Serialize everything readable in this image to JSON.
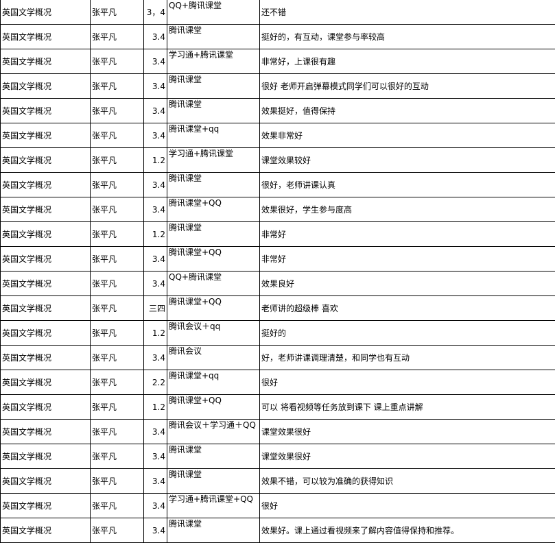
{
  "table": {
    "rows": [
      [
        "英国文学概况",
        "张平凡",
        "3，4",
        "QQ+腾讯课堂",
        "还不错"
      ],
      [
        "英国文学概况",
        "张平凡",
        "3.4",
        "腾讯课堂",
        "挺好的，有互动，课堂参与率较高"
      ],
      [
        "英国文学概况",
        "张平凡",
        "3.4",
        "学习通+腾讯课堂",
        "非常好，上课很有趣"
      ],
      [
        "英国文学概况",
        "张平凡",
        "3.4",
        "腾讯课堂",
        "很好 老师开启弹幕模式同学们可以很好的互动"
      ],
      [
        "英国文学概况",
        "张平凡",
        "3.4",
        "腾讯课堂",
        "效果挺好，值得保持"
      ],
      [
        "英国文学概况",
        "张平凡",
        "3.4",
        "腾讯课堂+qq",
        "效果非常好"
      ],
      [
        "英国文学概况",
        "张平凡",
        "1.2",
        "学习通+腾讯课堂",
        "课堂效果较好"
      ],
      [
        "英国文学概况",
        "张平凡",
        "3.4",
        "腾讯课堂",
        "很好，老师讲课认真"
      ],
      [
        "英国文学概况",
        "张平凡",
        "3.4",
        "腾讯课堂+QQ",
        "效果很好，学生参与度高"
      ],
      [
        "英国文学概况",
        "张平凡",
        "1.2",
        "腾讯课堂",
        "非常好"
      ],
      [
        "英国文学概况",
        "张平凡",
        "3.4",
        "腾讯课堂+QQ",
        "非常好"
      ],
      [
        "英国文学概况",
        "张平凡",
        "3.4",
        "QQ+腾讯课堂",
        "效果良好"
      ],
      [
        "英国文学概况",
        "张平凡",
        "三四",
        "腾讯课堂+QQ",
        "老师讲的超级棒 喜欢"
      ],
      [
        "英国文学概况",
        "张平凡",
        "1.2",
        "腾讯会议＋qq",
        "挺好的"
      ],
      [
        "英国文学概况",
        "张平凡",
        "3.4",
        "腾讯会议",
        "好，老师讲课调理清楚，和同学也有互动"
      ],
      [
        "英国文学概况",
        "张平凡",
        "2.2",
        "腾讯课堂+qq",
        "很好"
      ],
      [
        "英国文学概况",
        "张平凡",
        "1.2",
        "腾讯课堂+QQ",
        "可以 将看视频等任务放到课下 课上重点讲解"
      ],
      [
        "英国文学概况",
        "张平凡",
        "3.4",
        "腾讯会议＋学习通＋QQ",
        "课堂效果很好"
      ],
      [
        "英国文学概况",
        "张平凡",
        "3.4",
        "腾讯课堂",
        "课堂效果很好"
      ],
      [
        "英国文学概况",
        "张平凡",
        "3.4",
        "腾讯课堂",
        "效果不错，可以较为准确的获得知识"
      ],
      [
        "英国文学概况",
        "张平凡",
        "3.4",
        "学习通+腾讯课堂+QQ",
        "很好"
      ],
      [
        "英国文学概况",
        "张平凡",
        "3.4",
        "腾讯课堂",
        "效果好。课上通过看视频来了解内容值得保持和推荐。"
      ]
    ]
  }
}
